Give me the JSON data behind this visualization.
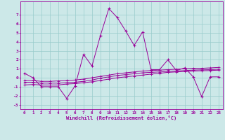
{
  "xlabel": "Windchill (Refroidissement éolien,°C)",
  "background_color": "#cce8e8",
  "grid_color": "#99cccc",
  "line_color": "#990099",
  "x_values": [
    0,
    1,
    2,
    3,
    4,
    5,
    6,
    7,
    8,
    9,
    10,
    11,
    12,
    13,
    14,
    15,
    16,
    17,
    18,
    19,
    20,
    21,
    22,
    23
  ],
  "y_main": [
    0.5,
    0.0,
    -1.0,
    -1.0,
    -1.0,
    -2.3,
    -0.9,
    2.6,
    1.3,
    4.7,
    7.7,
    6.7,
    5.2,
    3.6,
    5.1,
    0.9,
    0.9,
    2.0,
    0.8,
    1.1,
    0.1,
    -2.1,
    0.1,
    0.1
  ],
  "y_line2": [
    -0.8,
    -0.75,
    -0.8,
    -0.8,
    -0.8,
    -0.7,
    -0.65,
    -0.55,
    -0.45,
    -0.3,
    -0.15,
    0.0,
    0.1,
    0.2,
    0.3,
    0.4,
    0.5,
    0.6,
    0.65,
    0.7,
    0.75,
    0.78,
    0.8,
    0.85
  ],
  "y_line3": [
    -0.5,
    -0.5,
    -0.6,
    -0.6,
    -0.6,
    -0.55,
    -0.5,
    -0.4,
    -0.25,
    -0.05,
    0.1,
    0.25,
    0.35,
    0.45,
    0.55,
    0.6,
    0.65,
    0.7,
    0.75,
    0.8,
    0.85,
    0.88,
    0.9,
    0.95
  ],
  "y_line4": [
    -0.3,
    -0.3,
    -0.4,
    -0.4,
    -0.35,
    -0.3,
    -0.25,
    -0.15,
    0.0,
    0.15,
    0.3,
    0.45,
    0.55,
    0.65,
    0.75,
    0.8,
    0.85,
    0.9,
    0.95,
    1.0,
    1.05,
    1.05,
    1.1,
    1.15
  ],
  "ylim": [
    -3.5,
    8.5
  ],
  "yticks": [
    -3,
    -2,
    -1,
    0,
    1,
    2,
    3,
    4,
    5,
    6,
    7
  ],
  "xticks": [
    0,
    1,
    2,
    3,
    4,
    5,
    6,
    7,
    8,
    9,
    10,
    11,
    12,
    13,
    14,
    15,
    16,
    17,
    18,
    19,
    20,
    21,
    22,
    23
  ]
}
